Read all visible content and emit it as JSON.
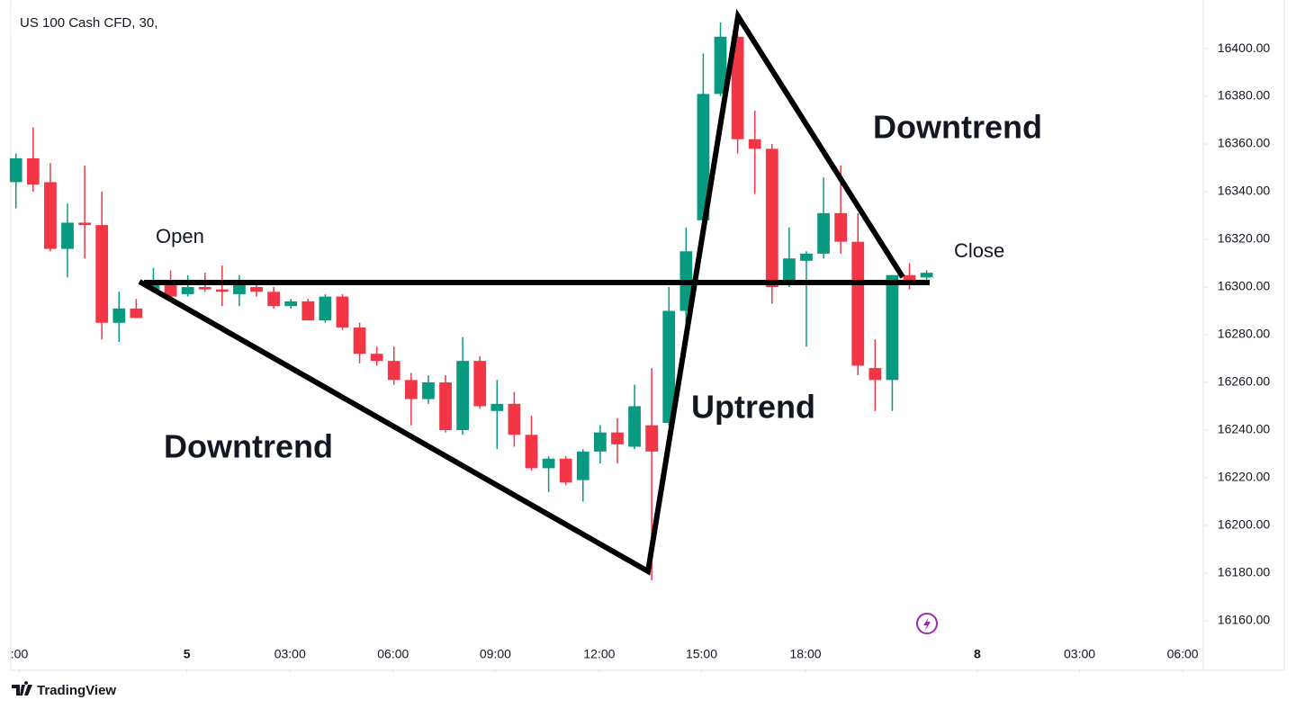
{
  "chart_data": {
    "type": "candlestick",
    "title": "US 100 Cash CFD, 30,",
    "watermark": "TradingView",
    "up_color": "#089981",
    "down_color": "#f23645",
    "x": [
      0,
      1,
      2,
      3,
      4,
      5,
      6,
      7,
      8,
      9,
      10,
      11,
      12,
      13,
      14,
      15,
      16,
      17,
      18,
      19,
      20,
      21,
      22,
      23,
      24,
      25,
      26,
      27,
      28,
      29,
      30,
      31,
      32,
      33,
      34,
      35,
      36,
      37,
      38,
      39,
      40,
      41,
      42,
      43,
      44,
      45,
      46,
      47,
      48,
      49,
      50,
      51,
      52,
      53
    ],
    "open": [
      16344,
      16354,
      16344,
      16316,
      16327,
      16326,
      16285,
      16291,
      16299,
      16302,
      16297,
      16300,
      16299,
      16297,
      16300,
      16298,
      16292,
      16294,
      16286,
      16296,
      16283,
      16272,
      16269,
      16261,
      16253,
      16260,
      16240,
      16269,
      16248,
      16251,
      16238,
      16224,
      16228,
      16219,
      16231,
      16239,
      16233,
      16242,
      16243,
      16290,
      16328,
      16381,
      16405,
      16362,
      16358,
      16301,
      16311,
      16314,
      16331,
      16319,
      16266,
      16261,
      16305,
      16304
    ],
    "high": [
      16356,
      16367,
      16352,
      16335,
      16351,
      16340,
      16298,
      16295,
      16308,
      16307,
      16305,
      16306,
      16309,
      16305,
      16301,
      16300,
      16295,
      16295,
      16297,
      16297,
      16285,
      16275,
      16275,
      16264,
      16263,
      16263,
      16279,
      16271,
      16261,
      16256,
      16246,
      16229,
      16229,
      16232,
      16242,
      16245,
      16259,
      16266,
      16300,
      16325,
      16398,
      16411,
      16412,
      16374,
      16360,
      16325,
      16315,
      16346,
      16351,
      16331,
      16278,
      16305,
      16310,
      16307
    ],
    "low": [
      16333,
      16340,
      16315,
      16304,
      16312,
      16278,
      16277,
      16287,
      16298,
      16295,
      16296,
      16298,
      16292,
      16292,
      16296,
      16291,
      16291,
      16286,
      16285,
      16282,
      16268,
      16267,
      16259,
      16242,
      16251,
      16239,
      16238,
      16249,
      16232,
      16233,
      16223,
      16214,
      16217,
      16210,
      16226,
      16226,
      16232,
      16177,
      16242,
      16284,
      16319,
      16380,
      16356,
      16339,
      16293,
      16300,
      16275,
      16312,
      16314,
      16263,
      16248,
      16248,
      16299,
      16303
    ],
    "close": [
      16354,
      16343,
      16316,
      16327,
      16326,
      16285,
      16291,
      16287,
      16302,
      16296,
      16300,
      16299,
      16298,
      16301,
      16298,
      16292,
      16294,
      16286,
      16296,
      16283,
      16272,
      16269,
      16261,
      16253,
      16260,
      16240,
      16269,
      16250,
      16251,
      16238,
      16224,
      16228,
      16218,
      16231,
      16239,
      16234,
      16250,
      16231,
      16290,
      16315,
      16381,
      16405,
      16362,
      16358,
      16300,
      16312,
      16314,
      16331,
      16319,
      16267,
      16261,
      16305,
      16303,
      16306
    ],
    "xlim": [
      -0.3,
      69.1
    ],
    "xticks": [
      {
        "value": 0.2,
        "label": ":00"
      },
      {
        "value": 9.95,
        "label": "5"
      },
      {
        "value": 15.95,
        "label": "03:00"
      },
      {
        "value": 21.95,
        "label": "06:00"
      },
      {
        "value": 27.9,
        "label": "09:00"
      },
      {
        "value": 33.95,
        "label": "12:00"
      },
      {
        "value": 39.9,
        "label": "15:00"
      },
      {
        "value": 45.95,
        "label": "18:00"
      },
      {
        "value": 55.95,
        "label": "8"
      },
      {
        "value": 61.9,
        "label": "03:00"
      },
      {
        "value": 67.9,
        "label": "06:00"
      }
    ],
    "ylim": [
      16139.6,
      16420.4
    ],
    "yticks": [
      {
        "value": 16160,
        "label": "16160.00"
      },
      {
        "value": 16180,
        "label": "16180.00"
      },
      {
        "value": 16200,
        "label": "16200.00"
      },
      {
        "value": 16220,
        "label": "16220.00"
      },
      {
        "value": 16240,
        "label": "16240.00"
      },
      {
        "value": 16260,
        "label": "16260.00"
      },
      {
        "value": 16280,
        "label": "16280.00"
      },
      {
        "value": 16300,
        "label": "16300.00"
      },
      {
        "value": 16320,
        "label": "16320.00"
      },
      {
        "value": 16340,
        "label": "16340.00"
      },
      {
        "value": 16360,
        "label": "16360.00"
      },
      {
        "value": 16380,
        "label": "16380.00"
      },
      {
        "value": 16400,
        "label": "16400.00"
      }
    ],
    "annotations": [
      "Open",
      "Close",
      "Downtrend",
      "Uptrend",
      "Downtrend"
    ]
  }
}
